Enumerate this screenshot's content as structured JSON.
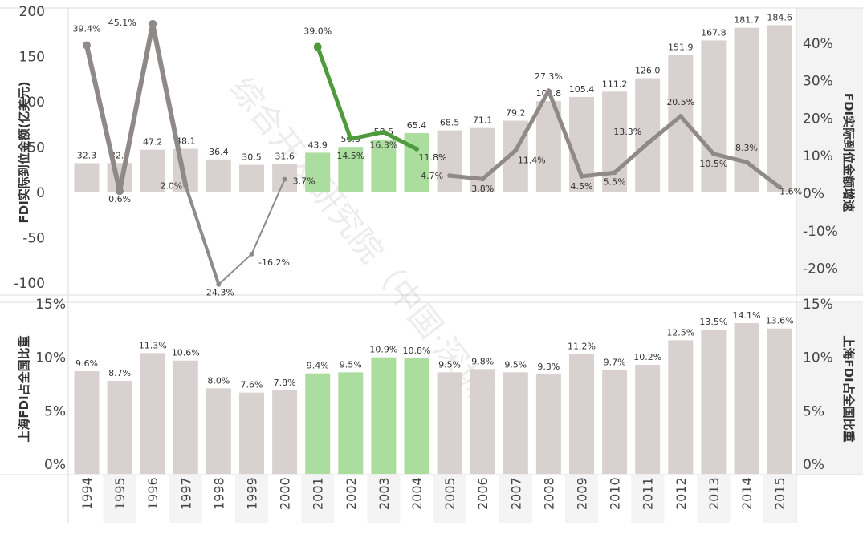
{
  "chart_data": {
    "type": "bar+line",
    "categories": [
      "1994",
      "1995",
      "1996",
      "1997",
      "1998",
      "1999",
      "2000",
      "2001",
      "2002",
      "2003",
      "2004",
      "2005",
      "2006",
      "2007",
      "2008",
      "2009",
      "2010",
      "2011",
      "2012",
      "2013",
      "2014",
      "2015"
    ],
    "highlight": [
      "2001",
      "2002",
      "2003",
      "2004"
    ],
    "top_panel": {
      "ylabel_left": "FDI实际到位金额(亿美元)",
      "ylabel_right": "FDI实际到位金额增速",
      "left_ylim": [
        -100,
        200
      ],
      "left_ticks": [
        "200",
        "150",
        "100",
        "50",
        "0",
        "-50",
        "-100"
      ],
      "left_tick_values": [
        200,
        150,
        100,
        50,
        0,
        -50,
        -100
      ],
      "right_ticks": [
        "40%",
        "30%",
        "20%",
        "10%",
        "0%",
        "-10%",
        "-20%"
      ],
      "right_tick_values": [
        40,
        30,
        20,
        10,
        0,
        -10,
        -20
      ],
      "bar_series": {
        "name": "FDI实际到位金额",
        "values": [
          32.3,
          32.5,
          47.2,
          48.1,
          36.4,
          30.5,
          31.6,
          43.9,
          50.3,
          58.5,
          65.4,
          68.5,
          71.1,
          79.2,
          100.8,
          105.4,
          111.2,
          126.0,
          151.9,
          167.8,
          181.7,
          184.6
        ],
        "labels": [
          "32.3",
          "32.5",
          "47.2",
          "48.1",
          "36.4",
          "30.5",
          "31.6",
          "43.9",
          "50.3",
          "58.5",
          "65.4",
          "68.5",
          "71.1",
          "79.2",
          "100.8",
          "105.4",
          "111.2",
          "126.0",
          "151.9",
          "167.8",
          "181.7",
          "184.6"
        ]
      },
      "line_series": {
        "name": "FDI实际到位金额增速",
        "values": [
          39.4,
          0.6,
          45.1,
          2.0,
          -24.3,
          -16.2,
          3.7,
          39.0,
          14.5,
          16.3,
          11.8,
          4.7,
          3.8,
          11.4,
          27.3,
          4.5,
          5.5,
          13.3,
          20.5,
          10.5,
          8.3,
          1.6
        ],
        "labels": [
          "39.4%",
          "0.6%",
          "45.1%",
          "2.0%",
          "-24.3%",
          "-16.2%",
          "3.7%",
          "39.0%",
          "14.5%",
          "16.3%",
          "11.8%",
          "4.7%",
          "3.8%",
          "11.4%",
          "27.3%",
          "4.5%",
          "5.5%",
          "13.3%",
          "20.5%",
          "10.5%",
          "8.3%",
          "1.6%"
        ]
      }
    },
    "bottom_panel": {
      "ylabel": "上海FDI占全国比重",
      "ylim": [
        0,
        15
      ],
      "ticks": [
        "15%",
        "10%",
        "5%",
        "0%"
      ],
      "tick_values": [
        15,
        10,
        5,
        0
      ],
      "bar_series": {
        "name": "上海FDI占全国比重",
        "values": [
          9.6,
          8.7,
          11.3,
          10.6,
          8.0,
          7.6,
          7.8,
          9.4,
          9.5,
          10.9,
          10.8,
          9.5,
          9.8,
          9.5,
          9.3,
          11.2,
          9.7,
          10.2,
          12.5,
          13.5,
          14.1,
          13.6
        ],
        "labels": [
          "9.6%",
          "8.7%",
          "11.3%",
          "10.6%",
          "8.0%",
          "7.6%",
          "7.8%",
          "9.4%",
          "9.5%",
          "10.9%",
          "10.8%",
          "9.5%",
          "9.8%",
          "9.5%",
          "9.3%",
          "11.2%",
          "9.7%",
          "10.2%",
          "12.5%",
          "13.5%",
          "14.1%",
          "13.6%"
        ]
      }
    },
    "colors": {
      "bar": "#d9d1cf",
      "bar_highlight": "#abdd9e",
      "line": "#8f8988",
      "line_highlight": "#4f9a3d",
      "axis_panel": "#f3f3f3",
      "year_shade": "#f4f4f4"
    },
    "watermark": "综合开发研究院（中国·深圳）"
  }
}
